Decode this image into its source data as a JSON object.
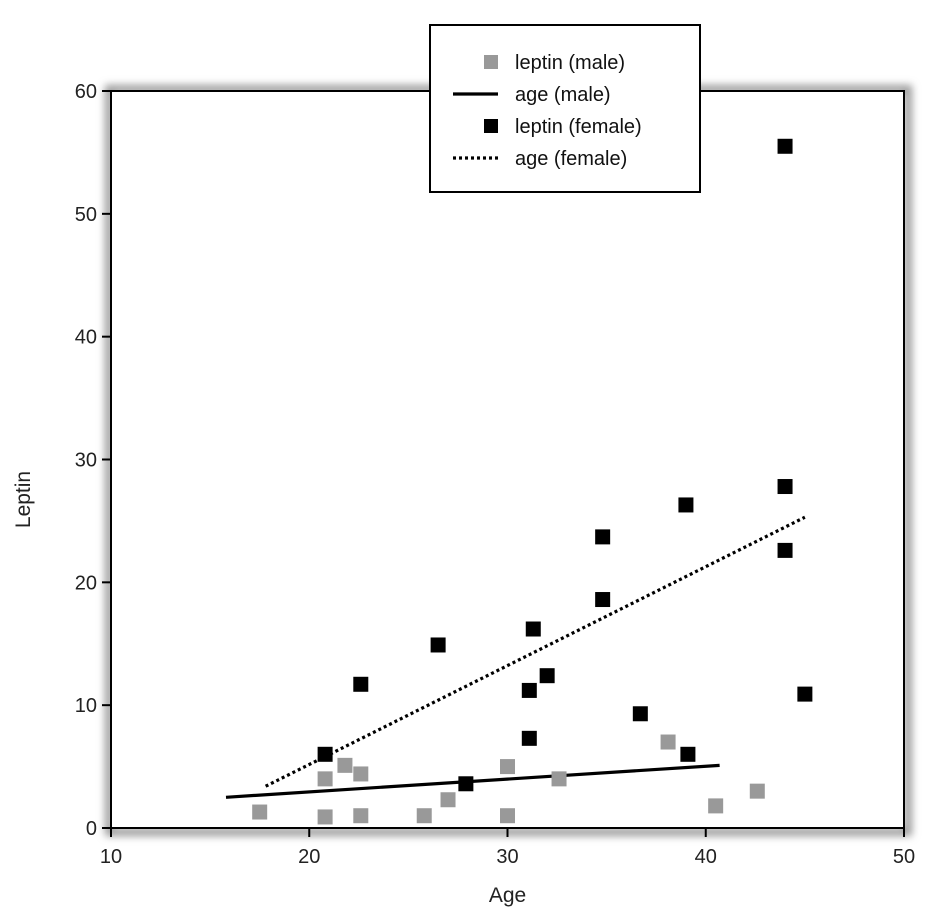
{
  "chart_data": {
    "type": "scatter",
    "xlabel": "Age",
    "ylabel": "Leptin",
    "xlim": [
      10,
      50
    ],
    "ylim": [
      0,
      60
    ],
    "xticks": [
      10,
      20,
      30,
      40,
      50
    ],
    "yticks": [
      0,
      10,
      20,
      30,
      40,
      50,
      60
    ],
    "grid": false,
    "legend_position": "top-center",
    "legend": [
      {
        "label": "leptin (male)",
        "kind": "marker",
        "color": "#999999"
      },
      {
        "label": "age (male)",
        "kind": "line",
        "style": "solid",
        "color": "#000000"
      },
      {
        "label": "leptin (female)",
        "kind": "marker",
        "color": "#000000"
      },
      {
        "label": "age (female)",
        "kind": "line",
        "style": "dotted",
        "color": "#000000"
      }
    ],
    "series": [
      {
        "name": "leptin (male)",
        "kind": "scatter",
        "color": "#999999",
        "points": [
          [
            17.5,
            1.3
          ],
          [
            20.8,
            4.0
          ],
          [
            20.8,
            0.9
          ],
          [
            21.8,
            5.1
          ],
          [
            22.6,
            4.4
          ],
          [
            22.6,
            1.0
          ],
          [
            25.8,
            1.0
          ],
          [
            27.0,
            2.3
          ],
          [
            30.0,
            5.0
          ],
          [
            30.0,
            1.0
          ],
          [
            32.6,
            4.0
          ],
          [
            38.1,
            7.0
          ],
          [
            40.5,
            1.8
          ],
          [
            42.6,
            3.0
          ]
        ]
      },
      {
        "name": "age (male)",
        "kind": "line",
        "style": "solid",
        "color": "#000000",
        "points": [
          [
            15.8,
            2.5
          ],
          [
            40.7,
            5.1
          ]
        ]
      },
      {
        "name": "leptin (female)",
        "kind": "scatter",
        "color": "#000000",
        "points": [
          [
            20.8,
            6.0
          ],
          [
            22.6,
            11.7
          ],
          [
            26.5,
            14.9
          ],
          [
            27.9,
            3.6
          ],
          [
            31.1,
            7.3
          ],
          [
            31.1,
            11.2
          ],
          [
            31.3,
            16.2
          ],
          [
            32.0,
            12.4
          ],
          [
            34.8,
            23.7
          ],
          [
            34.8,
            18.6
          ],
          [
            36.7,
            9.3
          ],
          [
            39.0,
            26.3
          ],
          [
            39.1,
            6.0
          ],
          [
            44.0,
            55.5
          ],
          [
            44.0,
            27.8
          ],
          [
            44.0,
            22.6
          ],
          [
            45.0,
            10.9
          ]
        ]
      },
      {
        "name": "age (female)",
        "kind": "line",
        "style": "dotted",
        "color": "#000000",
        "points": [
          [
            17.8,
            3.4
          ],
          [
            45.0,
            25.3
          ]
        ]
      }
    ]
  }
}
